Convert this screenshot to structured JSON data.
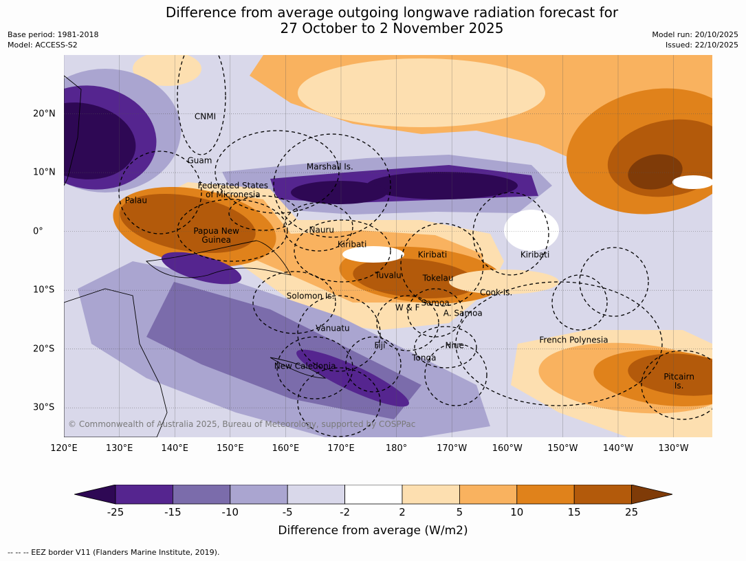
{
  "title": {
    "line1": "Difference from average outgoing longwave radiation forecast for",
    "line2": "27 October to 2 November 2025"
  },
  "meta": {
    "base_period": "Base period: 1981-2018",
    "model": "Model: ACCESS-S2",
    "model_run": "Model run: 20/10/2025",
    "issued": "Issued: 22/10/2025"
  },
  "map": {
    "extent": {
      "lon_min": 120,
      "lon_max": 237,
      "lat_min": -35,
      "lat_max": 30
    },
    "lon_ticks": [
      {
        "value": 120,
        "label": "120°E"
      },
      {
        "value": 130,
        "label": "130°E"
      },
      {
        "value": 140,
        "label": "140°E"
      },
      {
        "value": 150,
        "label": "150°E"
      },
      {
        "value": 160,
        "label": "160°E"
      },
      {
        "value": 170,
        "label": "170°E"
      },
      {
        "value": 180,
        "label": "180°"
      },
      {
        "value": 190,
        "label": "170°W"
      },
      {
        "value": 200,
        "label": "160°W"
      },
      {
        "value": 210,
        "label": "150°W"
      },
      {
        "value": 220,
        "label": "140°W"
      },
      {
        "value": 230,
        "label": "130°W"
      }
    ],
    "lat_ticks": [
      {
        "value": 20,
        "label": "20°N"
      },
      {
        "value": 10,
        "label": "10°N"
      },
      {
        "value": 0,
        "label": "0°"
      },
      {
        "value": -10,
        "label": "10°S"
      },
      {
        "value": -20,
        "label": "20°S"
      },
      {
        "value": -30,
        "label": "30°S"
      }
    ],
    "regions": [
      {
        "label": "CNMI",
        "lon": 145.5,
        "lat": 19.5
      },
      {
        "label": "Guam",
        "lon": 144.5,
        "lat": 12
      },
      {
        "label": "Marshall Is.",
        "lon": 168,
        "lat": 11
      },
      {
        "label": "Palau",
        "lon": 133,
        "lat": 5.2
      },
      {
        "label": "Federated States\nof Micronesia",
        "lon": 150.5,
        "lat": 7
      },
      {
        "label": "Nauru",
        "lon": 166.5,
        "lat": 0.2
      },
      {
        "label": "Papua New\nGuinea",
        "lon": 147.5,
        "lat": -0.7
      },
      {
        "label": "Kiribati",
        "lon": 172,
        "lat": -2.3
      },
      {
        "label": "Kiribati",
        "lon": 186.5,
        "lat": -4
      },
      {
        "label": "Kiribati",
        "lon": 205,
        "lat": -4
      },
      {
        "label": "Tuvalu",
        "lon": 178.5,
        "lat": -7.5
      },
      {
        "label": "Tokelau",
        "lon": 187.5,
        "lat": -8
      },
      {
        "label": "Solomon Is.",
        "lon": 164.5,
        "lat": -11
      },
      {
        "label": "Cook Is.",
        "lon": 198,
        "lat": -10.5
      },
      {
        "label": "Samoa",
        "lon": 187,
        "lat": -12.2
      },
      {
        "label": "W & F",
        "lon": 182,
        "lat": -13
      },
      {
        "label": "A. Samoa",
        "lon": 192,
        "lat": -14
      },
      {
        "label": "Vanuatu",
        "lon": 168.5,
        "lat": -16.5
      },
      {
        "label": "Fiji",
        "lon": 177,
        "lat": -19.5
      },
      {
        "label": "Niue",
        "lon": 190.5,
        "lat": -19.5
      },
      {
        "label": "French Polynesia",
        "lon": 212,
        "lat": -18.5
      },
      {
        "label": "Tonga",
        "lon": 185,
        "lat": -21.5
      },
      {
        "label": "New Caledonia",
        "lon": 163.5,
        "lat": -23
      },
      {
        "label": "Pitcairn\nIs.",
        "lon": 231,
        "lat": -25.5
      }
    ],
    "copyright": "© Commonwealth of Australia 2025, Bureau of Meteorology, supported by COSPPac"
  },
  "legend": {
    "title": "Difference from average (W/m2)",
    "bins": [
      {
        "label": "-25",
        "color": "#55258f"
      },
      {
        "label": "-15",
        "color": "#7b6cab"
      },
      {
        "label": "-10",
        "color": "#aaa5d0"
      },
      {
        "label": "-5",
        "color": "#d9d8ea"
      },
      {
        "label": "-2",
        "color": "#ffffff"
      },
      {
        "label": "2",
        "color": "#fddfb0"
      },
      {
        "label": "5",
        "color": "#f9b25f"
      },
      {
        "label": "10",
        "color": "#e0821b"
      },
      {
        "label": "15",
        "color": "#b35a0b"
      },
      {
        "label": "25",
        "color": ""
      }
    ],
    "extend_low_color": "#2e0854",
    "extend_high_color": "#7f3b08"
  },
  "footnote": "--  --  -- EEZ border V11 (Flanders Marine Institute, 2019)."
}
